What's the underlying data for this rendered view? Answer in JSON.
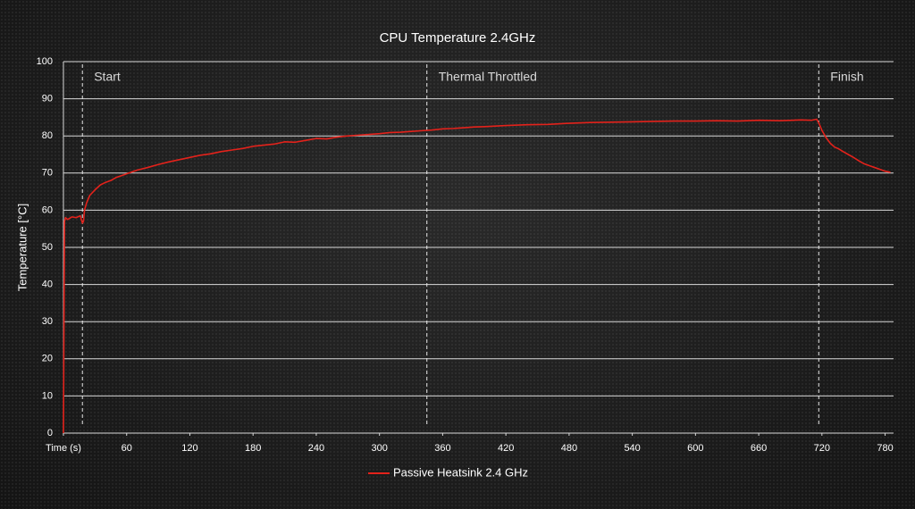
{
  "chart_data": {
    "type": "line",
    "title": "CPU Temperature 2.4GHz",
    "ylabel": "Temperature [°C]",
    "xlim": [
      0,
      788
    ],
    "ylim": [
      0,
      100
    ],
    "xticks": [
      {
        "value": 0,
        "label": "Time (s)"
      },
      60,
      120,
      180,
      240,
      300,
      360,
      420,
      480,
      540,
      600,
      660,
      720,
      780
    ],
    "yticks": [
      0,
      10,
      20,
      30,
      40,
      50,
      60,
      70,
      80,
      90,
      100
    ],
    "grid": true,
    "annotations": [
      {
        "label": "Start",
        "x": 18
      },
      {
        "label": "Thermal Throttled",
        "x": 345
      },
      {
        "label": "Finish",
        "x": 717
      }
    ],
    "x": [
      0,
      1,
      2,
      4,
      8,
      12,
      16,
      18,
      19,
      20,
      22,
      25,
      30,
      35,
      40,
      45,
      50,
      55,
      60,
      70,
      80,
      90,
      100,
      110,
      120,
      130,
      140,
      150,
      160,
      170,
      180,
      190,
      200,
      210,
      220,
      230,
      240,
      250,
      260,
      270,
      280,
      290,
      300,
      310,
      320,
      330,
      340,
      350,
      360,
      370,
      380,
      390,
      400,
      420,
      440,
      460,
      480,
      500,
      520,
      540,
      560,
      580,
      600,
      620,
      640,
      660,
      680,
      700,
      710,
      715,
      717,
      720,
      724,
      728,
      732,
      736,
      740,
      745,
      750,
      755,
      760,
      765,
      770,
      775,
      780,
      785
    ],
    "series": [
      {
        "name": "Passive Heatsink 2.4 GHz",
        "color": "#e3221b",
        "values": [
          0,
          57,
          58,
          57.5,
          58.2,
          58,
          58.5,
          56.5,
          57,
          60,
          62,
          64,
          65.5,
          66.8,
          67.5,
          68,
          68.8,
          69.3,
          69.8,
          70.8,
          71.5,
          72.3,
          73,
          73.6,
          74.2,
          74.8,
          75.2,
          75.8,
          76.2,
          76.6,
          77.2,
          77.5,
          77.8,
          78.4,
          78.3,
          78.8,
          79.3,
          79.2,
          79.7,
          80,
          80.2,
          80.4,
          80.6,
          80.9,
          81,
          81.2,
          81.4,
          81.6,
          81.9,
          82,
          82.2,
          82.4,
          82.5,
          82.8,
          83,
          83.1,
          83.4,
          83.6,
          83.7,
          83.8,
          83.9,
          84,
          84,
          84.1,
          84,
          84.2,
          84.1,
          84.3,
          84.2,
          84.5,
          83.5,
          81.5,
          79.5,
          78,
          77,
          76.5,
          75.8,
          75,
          74.2,
          73.3,
          72.5,
          72,
          71.5,
          71,
          70.5,
          70.2
        ]
      }
    ]
  }
}
